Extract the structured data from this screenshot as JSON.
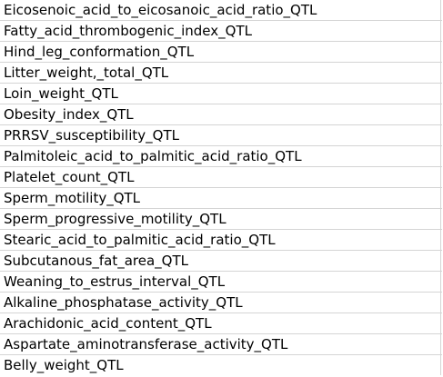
{
  "sheet": {
    "rows": [
      "Eicosenoic_acid_to_eicosanoic_acid_ratio_QTL",
      "Fatty_acid_thrombogenic_index_QTL",
      "Hind_leg_conformation_QTL",
      "Litter_weight,_total_QTL",
      "Loin_weight_QTL",
      "Obesity_index_QTL",
      "PRRSV_susceptibility_QTL",
      "Palmitoleic_acid_to_palmitic_acid_ratio_QTL",
      "Platelet_count_QTL",
      "Sperm_motility_QTL",
      "Sperm_progressive_motility_QTL",
      "Stearic_acid_to_palmitic_acid_ratio_QTL",
      "Subcutanous_fat_area_QTL",
      "Weaning_to_estrus_interval_QTL",
      "Alkaline_phosphatase_activity_QTL",
      "Arachidonic_acid_content_QTL",
      "Aspartate_aminotransferase_activity_QTL",
      "Belly_weight_QTL"
    ]
  }
}
